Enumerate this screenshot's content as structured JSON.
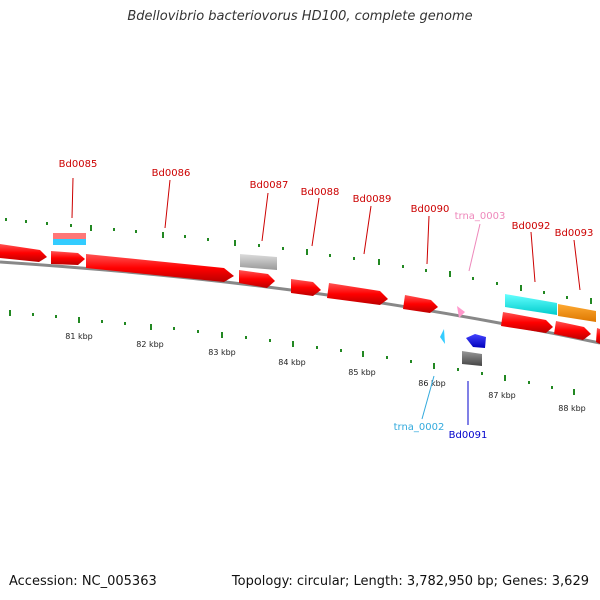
{
  "title": "Bdellovibrio bacteriovorus HD100, complete genome",
  "footer": {
    "accession": "Accession: NC_005363",
    "summary": "Topology: circular; Length: 3,782,950 bp; Genes: 3,629"
  },
  "colors": {
    "gene": "#ff0000",
    "gene_label": "#cc0000",
    "trna_light": "#33ccff",
    "trna_pink": "#ff99cc",
    "trna_label_cyan": "#33aadd",
    "trna_label_pink": "#ee88bb",
    "blue_gene": "#0000ff",
    "cyan_feature": "#00ffff",
    "orange_feature": "#ff8800",
    "grey_feature": "#bbbbbb",
    "dark_grey_feature": "#666666",
    "backbone": "#888888",
    "tick": "#228822"
  },
  "ruler": {
    "unit": "kbp",
    "labels": [
      "81 kbp",
      "82 kbp",
      "83 kbp",
      "84 kbp",
      "85 kbp",
      "86 kbp",
      "87 kbp",
      "88 kbp"
    ]
  },
  "features": [
    {
      "id": "Bd0085",
      "type": "gene",
      "strand": "+"
    },
    {
      "id": "Bd0086",
      "type": "gene",
      "strand": "+"
    },
    {
      "id": "Bd0087",
      "type": "gene",
      "strand": "+"
    },
    {
      "id": "Bd0088",
      "type": "gene",
      "strand": "+"
    },
    {
      "id": "Bd0089",
      "type": "gene",
      "strand": "+"
    },
    {
      "id": "Bd0090",
      "type": "gene",
      "strand": "+"
    },
    {
      "id": "trna_0003",
      "type": "tRNA",
      "strand": "+"
    },
    {
      "id": "Bd0092",
      "type": "gene",
      "strand": "+"
    },
    {
      "id": "Bd0093",
      "type": "gene",
      "strand": "+"
    },
    {
      "id": "trna_0002",
      "type": "tRNA",
      "strand": "-"
    },
    {
      "id": "Bd0091",
      "type": "gene",
      "strand": "-"
    }
  ]
}
